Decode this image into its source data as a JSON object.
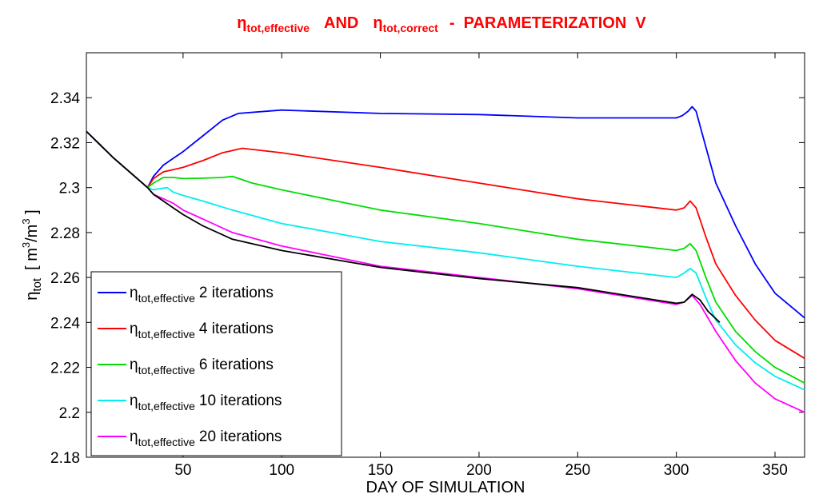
{
  "chart_data": {
    "type": "line",
    "title": {
      "sym": "η",
      "sub_a": "tot,effective",
      "connector": "AND",
      "sub_b": "tot,correct",
      "tail": "-  PARAMETERIZATION  V",
      "color": "#ff0000"
    },
    "xlabel": "DAY OF SIMULATION",
    "ylabel": {
      "sym": "η",
      "sub": "tot",
      "unit_open": "[ m",
      "unit_sup1": "3",
      "unit_mid": "/m",
      "unit_sup2": "3",
      "unit_close": " ]"
    },
    "xlim": [
      1,
      365
    ],
    "ylim": [
      2.18,
      2.36
    ],
    "xticks": [
      50,
      100,
      150,
      200,
      250,
      300,
      350
    ],
    "xtick_labels": [
      "50",
      "100",
      "150",
      "200",
      "250",
      "300",
      "350"
    ],
    "yticks": [
      2.18,
      2.2,
      2.22,
      2.24,
      2.26,
      2.28,
      2.3,
      2.32,
      2.34
    ],
    "ytick_labels": [
      "2.18",
      "2.2",
      "2.22",
      "2.24",
      "2.26",
      "2.28",
      "2.3",
      "2.32",
      "2.34"
    ],
    "grid": false,
    "legend_position": "bottom-left",
    "series": [
      {
        "name": "ηtot,effective 2 iterations",
        "legend": {
          "sym": "η",
          "sub": "tot,effective",
          "text": "2 iterations"
        },
        "color": "#0000ff",
        "x": [
          1,
          15,
          32,
          35,
          40,
          45,
          50,
          60,
          70,
          78,
          100,
          150,
          200,
          250,
          300,
          303,
          306,
          308,
          310,
          315,
          320,
          330,
          340,
          350,
          365
        ],
        "y": [
          2.325,
          2.313,
          2.3,
          2.305,
          2.31,
          2.313,
          2.316,
          2.323,
          2.33,
          2.333,
          2.3345,
          2.333,
          2.3325,
          2.331,
          2.331,
          2.332,
          2.334,
          2.336,
          2.334,
          2.318,
          2.302,
          2.283,
          2.266,
          2.253,
          2.242
        ]
      },
      {
        "name": "ηtot,effective 4 iterations",
        "legend": {
          "sym": "η",
          "sub": "tot,effective",
          "text": "4 iterations"
        },
        "color": "#ff0000",
        "x": [
          1,
          15,
          32,
          35,
          40,
          45,
          50,
          60,
          70,
          80,
          100,
          150,
          200,
          250,
          300,
          304,
          307,
          310,
          315,
          320,
          330,
          340,
          350,
          365
        ],
        "y": [
          2.325,
          2.313,
          2.3,
          2.304,
          2.307,
          2.308,
          2.309,
          2.312,
          2.3155,
          2.3175,
          2.3155,
          2.309,
          2.302,
          2.295,
          2.29,
          2.291,
          2.294,
          2.291,
          2.278,
          2.266,
          2.252,
          2.241,
          2.232,
          2.224
        ]
      },
      {
        "name": "ηtot,effective 6 iterations",
        "legend": {
          "sym": "η",
          "sub": "tot,effective",
          "text": "6 iterations"
        },
        "color": "#00dd00",
        "x": [
          1,
          15,
          32,
          35,
          40,
          45,
          50,
          60,
          70,
          75,
          85,
          100,
          150,
          200,
          250,
          300,
          304,
          307,
          310,
          315,
          320,
          330,
          340,
          350,
          365
        ],
        "y": [
          2.325,
          2.313,
          2.3,
          2.302,
          2.3045,
          2.3045,
          2.304,
          2.3042,
          2.3045,
          2.305,
          2.302,
          2.299,
          2.29,
          2.284,
          2.277,
          2.272,
          2.273,
          2.275,
          2.272,
          2.26,
          2.249,
          2.236,
          2.227,
          2.22,
          2.213
        ]
      },
      {
        "name": "ηtot,effective 10 iterations",
        "legend": {
          "sym": "η",
          "sub": "tot,effective",
          "text": "10 iterations"
        },
        "color": "#00eeee",
        "x": [
          1,
          15,
          32,
          35,
          38,
          42,
          45,
          50,
          60,
          75,
          100,
          150,
          200,
          250,
          300,
          304,
          307,
          310,
          315,
          320,
          330,
          340,
          350,
          365
        ],
        "y": [
          2.325,
          2.313,
          2.3,
          2.299,
          2.2995,
          2.3,
          2.298,
          2.2965,
          2.294,
          2.29,
          2.284,
          2.276,
          2.271,
          2.265,
          2.26,
          2.262,
          2.264,
          2.262,
          2.251,
          2.241,
          2.23,
          2.222,
          2.216,
          2.21
        ]
      },
      {
        "name": "ηtot,effective 20 iterations",
        "legend": {
          "sym": "η",
          "sub": "tot,effective",
          "text": "20 iterations"
        },
        "color": "#ff00ff",
        "x": [
          1,
          15,
          32,
          35,
          40,
          45,
          50,
          60,
          75,
          100,
          150,
          200,
          250,
          300,
          304,
          308,
          312,
          320,
          330,
          340,
          350,
          365
        ],
        "y": [
          2.325,
          2.313,
          2.3,
          2.297,
          2.295,
          2.293,
          2.29,
          2.286,
          2.28,
          2.274,
          2.265,
          2.26,
          2.255,
          2.248,
          2.249,
          2.252,
          2.248,
          2.236,
          2.223,
          2.213,
          2.206,
          2.2
        ]
      },
      {
        "name": "ηtot,correct",
        "legend": null,
        "color": "#000000",
        "x": [
          1,
          15,
          32,
          35,
          40,
          45,
          50,
          60,
          75,
          100,
          150,
          200,
          250,
          300,
          304,
          308,
          312,
          316,
          322
        ],
        "y": [
          2.325,
          2.313,
          2.3,
          2.297,
          2.294,
          2.291,
          2.288,
          2.283,
          2.277,
          2.272,
          2.2645,
          2.2595,
          2.2555,
          2.2485,
          2.249,
          2.2525,
          2.25,
          2.245,
          2.24
        ]
      }
    ]
  }
}
